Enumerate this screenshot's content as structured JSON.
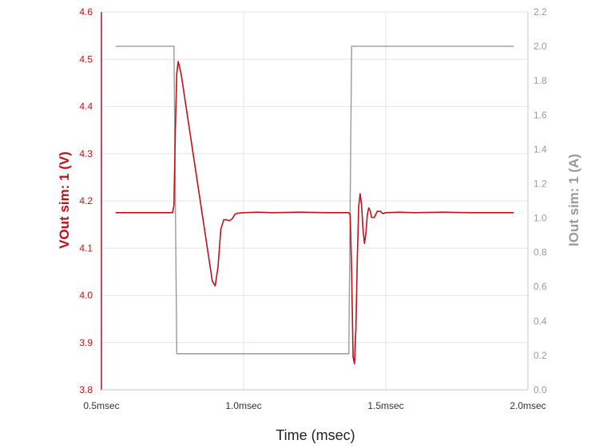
{
  "chart_data": {
    "type": "line",
    "xlabel": "Time (msec)",
    "ylabel_left": "VOut sim: 1 (V)",
    "ylabel_right": "IOut sim: 1 (A)",
    "xlim": [
      0.5,
      2.0
    ],
    "ylim_left": [
      3.8,
      4.6
    ],
    "ylim_right": [
      0.0,
      2.2
    ],
    "x_ticks": [
      {
        "value": 0.5,
        "label": "0.5msec"
      },
      {
        "value": 1.0,
        "label": "1.0msec"
      },
      {
        "value": 1.5,
        "label": "1.5msec"
      },
      {
        "value": 2.0,
        "label": "2.0msec"
      }
    ],
    "y_left_ticks": [
      "3.8",
      "3.9",
      "4.0",
      "4.1",
      "4.2",
      "4.3",
      "4.4",
      "4.5",
      "4.6"
    ],
    "y_right_ticks": [
      "0.0",
      "0.2",
      "0.4",
      "0.6",
      "0.8",
      "1.0",
      "1.2",
      "1.4",
      "1.6",
      "1.8",
      "2.0",
      "2.2"
    ],
    "grid": true,
    "colors": {
      "vout": "#c0101a",
      "iout": "#9a9a9a",
      "grid": "#e6e6e6",
      "axis": "#c8c8c8"
    },
    "series": [
      {
        "name": "VOut sim: 1",
        "axis": "left",
        "points": [
          [
            0.55,
            4.175
          ],
          [
            0.75,
            4.175
          ],
          [
            0.755,
            4.19
          ],
          [
            0.76,
            4.35
          ],
          [
            0.765,
            4.47
          ],
          [
            0.77,
            4.495
          ],
          [
            0.78,
            4.47
          ],
          [
            0.8,
            4.39
          ],
          [
            0.82,
            4.31
          ],
          [
            0.84,
            4.23
          ],
          [
            0.86,
            4.15
          ],
          [
            0.88,
            4.07
          ],
          [
            0.89,
            4.03
          ],
          [
            0.9,
            4.02
          ],
          [
            0.91,
            4.06
          ],
          [
            0.92,
            4.14
          ],
          [
            0.93,
            4.16
          ],
          [
            0.94,
            4.16
          ],
          [
            0.95,
            4.158
          ],
          [
            0.96,
            4.162
          ],
          [
            0.97,
            4.172
          ],
          [
            0.98,
            4.174
          ],
          [
            1.0,
            4.175
          ],
          [
            1.05,
            4.176
          ],
          [
            1.1,
            4.175
          ],
          [
            1.2,
            4.176
          ],
          [
            1.3,
            4.175
          ],
          [
            1.37,
            4.175
          ],
          [
            1.375,
            4.17
          ],
          [
            1.38,
            4.05
          ],
          [
            1.385,
            3.87
          ],
          [
            1.39,
            3.855
          ],
          [
            1.395,
            3.93
          ],
          [
            1.4,
            4.08
          ],
          [
            1.405,
            4.19
          ],
          [
            1.41,
            4.215
          ],
          [
            1.415,
            4.19
          ],
          [
            1.42,
            4.14
          ],
          [
            1.425,
            4.11
          ],
          [
            1.43,
            4.13
          ],
          [
            1.435,
            4.17
          ],
          [
            1.44,
            4.185
          ],
          [
            1.445,
            4.18
          ],
          [
            1.45,
            4.165
          ],
          [
            1.46,
            4.165
          ],
          [
            1.47,
            4.178
          ],
          [
            1.48,
            4.178
          ],
          [
            1.49,
            4.173
          ],
          [
            1.5,
            4.175
          ],
          [
            1.55,
            4.176
          ],
          [
            1.6,
            4.175
          ],
          [
            1.7,
            4.176
          ],
          [
            1.8,
            4.175
          ],
          [
            1.95,
            4.175
          ]
        ]
      },
      {
        "name": "IOut sim: 1",
        "axis": "right",
        "points": [
          [
            0.55,
            2.0
          ],
          [
            0.75,
            2.0
          ],
          [
            0.755,
            2.0
          ],
          [
            0.765,
            0.21
          ],
          [
            1.37,
            0.21
          ],
          [
            1.38,
            2.0
          ],
          [
            1.95,
            2.0
          ]
        ]
      }
    ]
  }
}
